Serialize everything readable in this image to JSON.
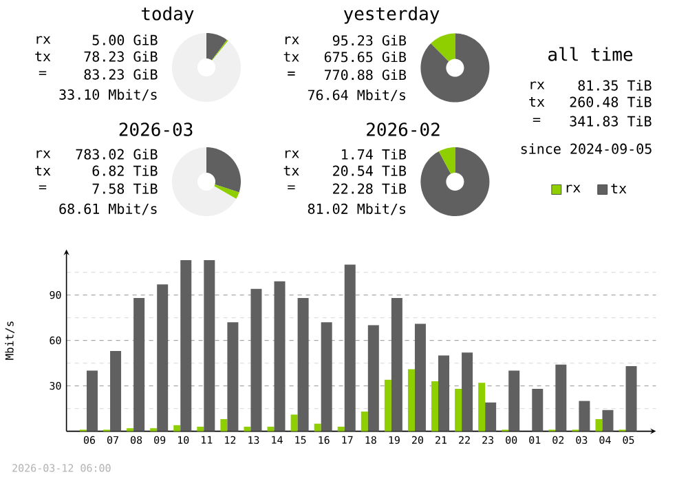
{
  "chart_data": [
    {
      "type": "donut",
      "title": "today",
      "categories": [
        null,
        null,
        null
      ],
      "values": [
        10.2,
        0.7,
        89.1
      ],
      "colors": [
        "#606060",
        "#8fcf00",
        "#f0f0f0"
      ],
      "annotations": [
        "rx",
        "5.00 GiB",
        "tx",
        "78.23 GiB",
        "=",
        "83.23 GiB",
        "33.10 Mbit/s"
      ]
    },
    {
      "type": "donut",
      "title": "yesterday",
      "categories": [
        null,
        null
      ],
      "values": [
        87.6,
        12.4
      ],
      "colors": [
        "#606060",
        "#8fcf00"
      ],
      "annotations": [
        "rx",
        "95.23 GiB",
        "tx",
        "675.65 GiB",
        "=",
        "770.88 GiB",
        "76.64 Mbit/s"
      ]
    },
    {
      "type": "other",
      "title": "all time",
      "annotations": [
        "rx",
        "81.35 TiB",
        "tx",
        "260.48 TiB",
        "=",
        "341.83 TiB",
        "since 2024-09-05"
      ]
    },
    {
      "type": "donut",
      "title": "2026-03",
      "categories": [
        null,
        null,
        null
      ],
      "values": [
        30.0,
        3.3,
        66.7
      ],
      "colors": [
        "#606060",
        "#8fcf00",
        "#f0f0f0"
      ],
      "annotations": [
        "rx",
        "783.02 GiB",
        "tx",
        "6.82 TiB",
        "=",
        "7.58 TiB",
        "68.61 Mbit/s"
      ]
    },
    {
      "type": "donut",
      "title": "2026-02",
      "categories": [
        null,
        null
      ],
      "values": [
        92.2,
        7.8
      ],
      "colors": [
        "#606060",
        "#8fcf00"
      ],
      "annotations": [
        "rx",
        "1.74 TiB",
        "tx",
        "20.54 TiB",
        "=",
        "22.28 TiB",
        "81.02 Mbit/s"
      ]
    },
    {
      "type": "bar",
      "ylabel": "Mbit/s",
      "categories": [
        "06",
        "07",
        "08",
        "09",
        "10",
        "11",
        "12",
        "13",
        "14",
        "15",
        "16",
        "17",
        "18",
        "19",
        "20",
        "21",
        "22",
        "23",
        "00",
        "01",
        "02",
        "03",
        "04",
        "05"
      ],
      "series": [
        {
          "name": "rx",
          "color": "#8fcf00",
          "values": [
            1,
            1,
            2,
            2,
            4,
            3,
            8,
            3,
            3,
            11,
            5,
            3,
            13,
            34,
            41,
            33,
            28,
            32,
            1,
            0,
            1,
            1,
            8,
            1
          ]
        },
        {
          "name": "tx",
          "color": "#606060",
          "values": [
            40,
            53,
            88,
            97,
            113,
            113,
            72,
            94,
            99,
            88,
            72,
            110,
            70,
            88,
            71,
            50,
            52,
            19,
            40,
            28,
            44,
            20,
            14,
            43
          ]
        }
      ],
      "ylim": [
        0,
        120
      ],
      "yticks": [
        {
          "value": 15,
          "label": null
        },
        30,
        {
          "value": 45,
          "label": null
        },
        60,
        {
          "value": 75,
          "label": null
        },
        90,
        {
          "value": 105,
          "label": null
        }
      ],
      "grid": "y",
      "legend": "top right",
      "annotations": [
        "2026-03-12 06:00"
      ]
    }
  ]
}
